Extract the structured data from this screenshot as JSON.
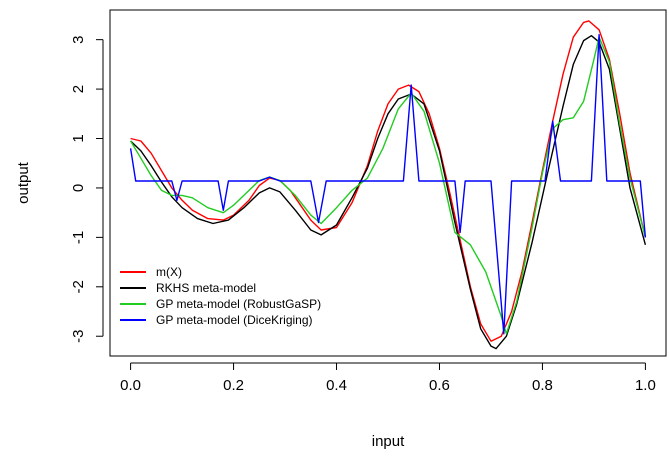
{
  "chart_data": {
    "type": "line",
    "xlabel": "input",
    "ylabel": "output",
    "xlim": [
      -0.04,
      1.04
    ],
    "ylim": [
      -3.4,
      3.6
    ],
    "xticks": [
      {
        "v": 0.0,
        "label": "0.0"
      },
      {
        "v": 0.2,
        "label": "0.2"
      },
      {
        "v": 0.4,
        "label": "0.4"
      },
      {
        "v": 0.6,
        "label": "0.6"
      },
      {
        "v": 0.8,
        "label": "0.8"
      },
      {
        "v": 1.0,
        "label": "1.0"
      }
    ],
    "yticks": [
      {
        "v": -3,
        "label": "-3"
      },
      {
        "v": -2,
        "label": "-2"
      },
      {
        "v": -1,
        "label": "-1"
      },
      {
        "v": 0,
        "label": "0"
      },
      {
        "v": 1,
        "label": "1"
      },
      {
        "v": 2,
        "label": "2"
      },
      {
        "v": 3,
        "label": "3"
      }
    ],
    "grid": false,
    "legend_position": "bottom-left",
    "series": [
      {
        "name": "m(X)",
        "color": "#ff0000",
        "x": [
          0.0,
          0.02,
          0.04,
          0.06,
          0.08,
          0.1,
          0.12,
          0.15,
          0.18,
          0.2,
          0.23,
          0.25,
          0.27,
          0.29,
          0.31,
          0.33,
          0.35,
          0.37,
          0.4,
          0.43,
          0.46,
          0.48,
          0.5,
          0.52,
          0.54,
          0.56,
          0.58,
          0.6,
          0.62,
          0.64,
          0.66,
          0.68,
          0.7,
          0.72,
          0.74,
          0.76,
          0.78,
          0.8,
          0.82,
          0.84,
          0.86,
          0.88,
          0.89,
          0.91,
          0.93,
          0.95,
          0.97,
          1.0
        ],
        "y": [
          1.0,
          0.95,
          0.7,
          0.35,
          0.0,
          -0.25,
          -0.45,
          -0.62,
          -0.65,
          -0.55,
          -0.25,
          0.05,
          0.2,
          0.15,
          -0.05,
          -0.35,
          -0.65,
          -0.85,
          -0.8,
          -0.3,
          0.45,
          1.15,
          1.7,
          2.0,
          2.08,
          1.95,
          1.5,
          0.8,
          -0.1,
          -1.05,
          -2.0,
          -2.75,
          -3.1,
          -3.0,
          -2.5,
          -1.7,
          -0.7,
          0.35,
          1.35,
          2.3,
          3.05,
          3.35,
          3.38,
          3.2,
          2.6,
          1.5,
          0.3,
          -1.0
        ]
      },
      {
        "name": "RKHS meta-model",
        "color": "#000000",
        "x": [
          0.0,
          0.02,
          0.04,
          0.06,
          0.08,
          0.1,
          0.13,
          0.16,
          0.19,
          0.22,
          0.25,
          0.27,
          0.29,
          0.32,
          0.35,
          0.37,
          0.4,
          0.43,
          0.46,
          0.48,
          0.5,
          0.52,
          0.545,
          0.57,
          0.6,
          0.63,
          0.66,
          0.68,
          0.7,
          0.71,
          0.73,
          0.75,
          0.78,
          0.81,
          0.84,
          0.86,
          0.88,
          0.895,
          0.91,
          0.93,
          0.95,
          0.97,
          1.0
        ],
        "y": [
          0.95,
          0.75,
          0.45,
          0.12,
          -0.18,
          -0.4,
          -0.62,
          -0.72,
          -0.65,
          -0.4,
          -0.1,
          0.0,
          -0.08,
          -0.45,
          -0.85,
          -0.95,
          -0.75,
          -0.2,
          0.4,
          1.0,
          1.5,
          1.8,
          1.9,
          1.7,
          0.75,
          -0.7,
          -2.05,
          -2.85,
          -3.2,
          -3.25,
          -3.0,
          -2.35,
          -1.1,
          0.3,
          1.65,
          2.5,
          2.98,
          3.08,
          2.95,
          2.4,
          1.2,
          0.0,
          -1.15
        ]
      },
      {
        "name": "GP meta-model (RobustGaSP)",
        "color": "#22cc22",
        "x": [
          0.0,
          0.02,
          0.04,
          0.06,
          0.08,
          0.1,
          0.12,
          0.15,
          0.18,
          0.2,
          0.23,
          0.25,
          0.27,
          0.29,
          0.32,
          0.35,
          0.37,
          0.4,
          0.43,
          0.46,
          0.49,
          0.52,
          0.545,
          0.57,
          0.6,
          0.63,
          0.66,
          0.69,
          0.72,
          0.73,
          0.75,
          0.78,
          0.8,
          0.82,
          0.84,
          0.86,
          0.88,
          0.9,
          0.91,
          0.93,
          0.95,
          0.97,
          1.0
        ],
        "y": [
          0.95,
          0.6,
          0.25,
          -0.05,
          -0.15,
          -0.15,
          -0.2,
          -0.4,
          -0.5,
          -0.35,
          -0.05,
          0.15,
          0.22,
          0.15,
          -0.15,
          -0.55,
          -0.72,
          -0.4,
          -0.05,
          0.2,
          0.8,
          1.6,
          1.92,
          1.55,
          0.5,
          -0.9,
          -1.15,
          -1.7,
          -2.6,
          -2.95,
          -2.3,
          -0.8,
          0.3,
          1.2,
          1.38,
          1.42,
          1.75,
          2.6,
          3.05,
          2.55,
          1.3,
          0.2,
          -1.0
        ]
      },
      {
        "name": "GP meta-model (DiceKriging)",
        "color": "#0000ff",
        "x": [
          0.0,
          0.01,
          0.08,
          0.09,
          0.1,
          0.17,
          0.18,
          0.19,
          0.25,
          0.27,
          0.29,
          0.35,
          0.365,
          0.38,
          0.53,
          0.545,
          0.56,
          0.63,
          0.64,
          0.65,
          0.7,
          0.725,
          0.74,
          0.805,
          0.82,
          0.835,
          0.895,
          0.91,
          0.925,
          0.99,
          1.0
        ],
        "y": [
          0.8,
          0.14,
          0.14,
          -0.25,
          0.14,
          0.14,
          -0.45,
          0.14,
          0.14,
          0.22,
          0.14,
          0.14,
          -0.7,
          0.14,
          0.14,
          2.08,
          0.14,
          0.14,
          -0.9,
          0.14,
          0.14,
          -2.95,
          0.14,
          0.14,
          1.35,
          0.14,
          0.14,
          3.1,
          0.14,
          0.14,
          -1.0
        ]
      }
    ]
  }
}
